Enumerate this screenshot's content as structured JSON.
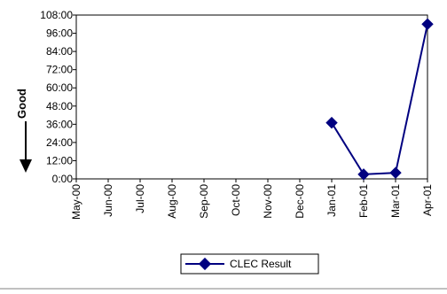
{
  "side_label": "Good",
  "colors": {
    "series": "#000080",
    "axis": "#000000",
    "divider": "#808080"
  },
  "chart_data": {
    "type": "line",
    "title": "",
    "xlabel": "",
    "ylabel": "",
    "categories": [
      "May-00",
      "Jun-00",
      "Jul-00",
      "Aug-00",
      "Sep-00",
      "Oct-00",
      "Nov-00",
      "Dec-00",
      "Jan-01",
      "Feb-01",
      "Mar-01",
      "Apr-01"
    ],
    "y_ticks": [
      "0:00",
      "12:00",
      "24:00",
      "36:00",
      "48:00",
      "60:00",
      "72:00",
      "84:00",
      "96:00",
      "108:00"
    ],
    "ylim": [
      0,
      108
    ],
    "y_unit": "hours",
    "grid": false,
    "legend_position": "bottom",
    "series": [
      {
        "name": "CLEC Result",
        "marker": "diamond",
        "values": [
          null,
          null,
          null,
          null,
          null,
          null,
          null,
          null,
          37,
          3,
          4,
          102
        ]
      }
    ]
  }
}
